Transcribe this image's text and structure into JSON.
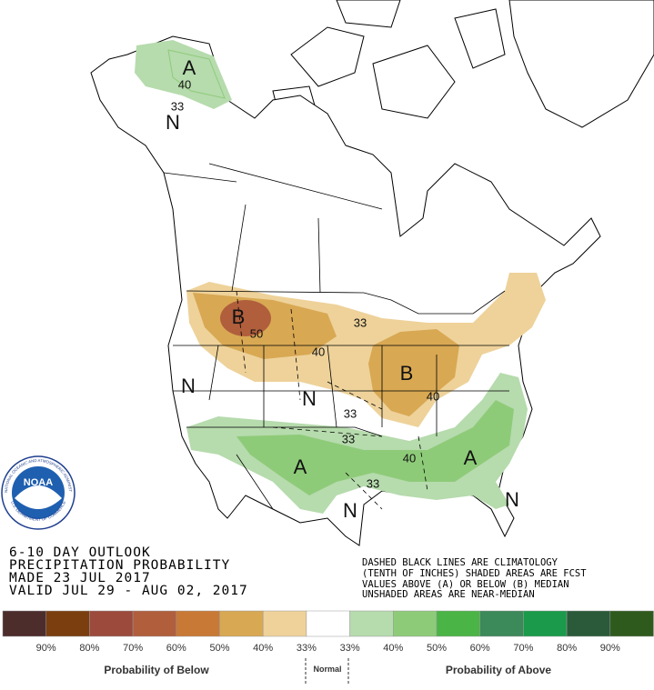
{
  "map_labels": [
    "A",
    "40",
    "33",
    "N",
    "B",
    "50",
    "40",
    "33",
    "B",
    "40",
    "N",
    "33",
    "33",
    "A",
    "A",
    "40",
    "33",
    "N",
    "N",
    "N"
  ],
  "title_block": {
    "lines": [
      "6-10 DAY OUTLOOK",
      "PRECIPITATION PROBABILITY",
      "MADE  23 JUL 2017",
      "VALID  JUL 29 - AUG 02, 2017"
    ]
  },
  "notes": {
    "lines": [
      "DASHED BLACK LINES ARE CLIMATOLOGY",
      "(TENTH OF INCHES) SHADED AREAS ARE FCST",
      "VALUES ABOVE (A) OR BELOW (B) MEDIAN",
      "UNSHADED AREAS ARE NEAR-MEDIAN"
    ]
  },
  "logo": {
    "name": "NOAA",
    "agency": "NATIONAL OCEANIC AND ATMOSPHERIC ADMINISTRATION",
    "department": "U.S. DEPARTMENT OF COMMERCE"
  },
  "legend": {
    "colors": [
      "#4d2c2c",
      "#7a3e0f",
      "#9b4a3c",
      "#b05e3c",
      "#c87936",
      "#d8a853",
      "#eed29a",
      "#ffffff",
      "#b6dbad",
      "#8ecb79",
      "#4bb446",
      "#3c8959",
      "#1a9a4a",
      "#2a5a3a",
      "#2f5a1d"
    ],
    "tick_labels": [
      "90%",
      "80%",
      "70%",
      "60%",
      "50%",
      "40%",
      "33%",
      "33%",
      "40%",
      "50%",
      "60%",
      "70%",
      "80%",
      "90%"
    ],
    "below_label": "Probability of Below",
    "normal_label": "Normal",
    "above_label": "Probability of Above"
  }
}
